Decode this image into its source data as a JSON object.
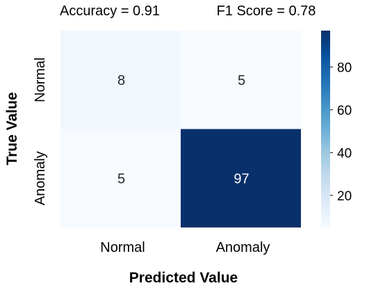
{
  "metrics": {
    "accuracy": "Accuracy = 0.91",
    "f1": "F1 Score = 0.78"
  },
  "chart_data": {
    "type": "heatmap",
    "xlabel": "Predicted Value",
    "ylabel": "True Value",
    "x_categories": [
      "Normal",
      "Anomaly"
    ],
    "y_categories": [
      "Normal",
      "Anomaly"
    ],
    "values": [
      [
        8,
        5
      ],
      [
        5,
        97
      ]
    ],
    "colormap": "Blues",
    "colorbar": {
      "ticks": [
        20,
        40,
        60,
        80
      ],
      "range": [
        5,
        97
      ]
    },
    "colors": {
      "low": "#f7fbff",
      "high": "#08306b"
    }
  }
}
